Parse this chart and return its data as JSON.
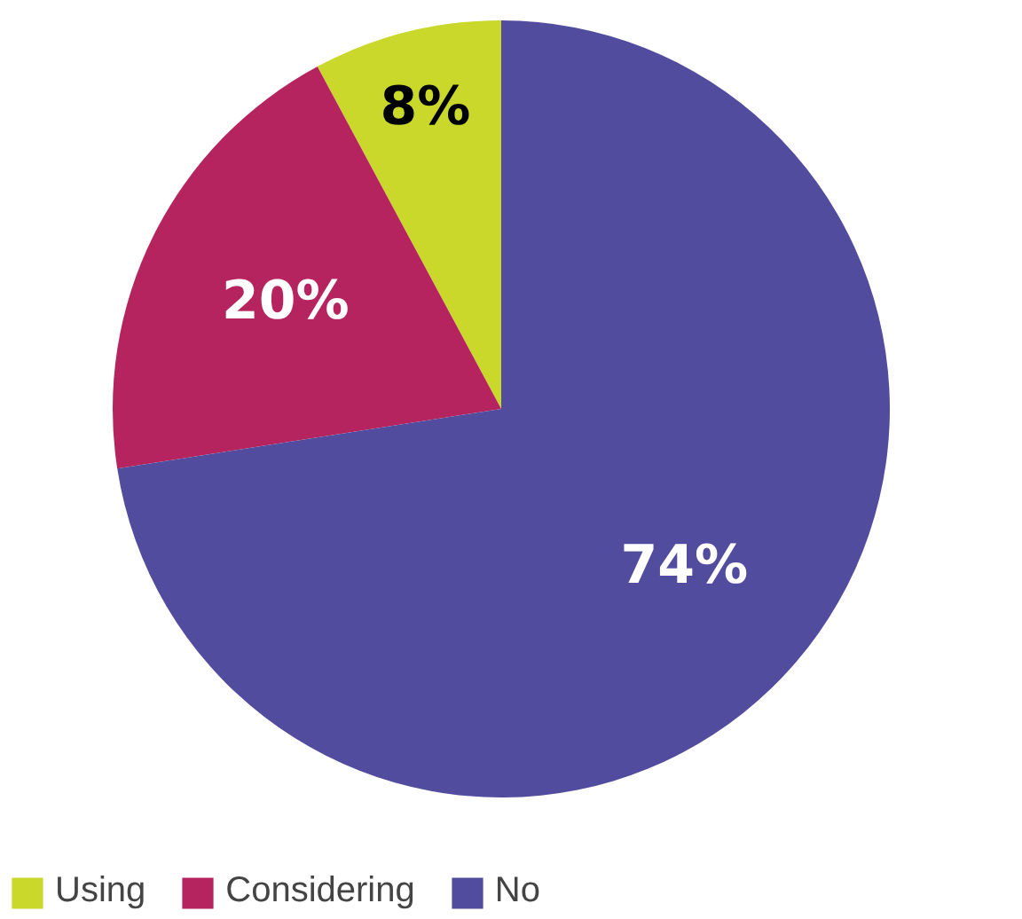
{
  "chart_data": {
    "type": "pie",
    "categories": [
      "Using",
      "Considering",
      "No"
    ],
    "values": [
      8,
      20,
      74
    ],
    "value_labels": [
      "8%",
      "20%",
      "74%"
    ],
    "colors": [
      "#c9d82a",
      "#b5245f",
      "#524c9f"
    ],
    "legend": "bottom left"
  }
}
